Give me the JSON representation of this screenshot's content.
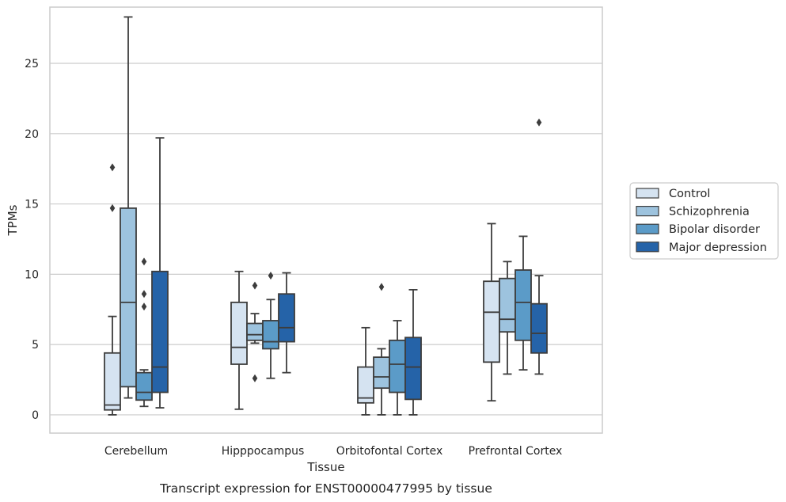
{
  "chart_data": {
    "type": "box",
    "xlabel": "Tissue",
    "ylabel": "TPMs",
    "caption": "Transcript expression for ENST00000477995 by tissue",
    "ylim": [
      -1.3,
      29
    ],
    "yticks": [
      0,
      5,
      10,
      15,
      20,
      25
    ],
    "grid": "horizontal",
    "legend_position": "right",
    "categories": [
      "Cerebellum",
      "Hipppocampus",
      "Orbitofontal Cortex",
      "Prefrontal Cortex"
    ],
    "series": [
      {
        "name": "Control",
        "color": "#d5e3f1",
        "boxes": [
          {
            "whisker_low": 0.0,
            "q1": 0.35,
            "median": 0.7,
            "q3": 4.4,
            "whisker_high": 7.0,
            "outliers": [
              17.6,
              14.7
            ]
          },
          {
            "whisker_low": 0.4,
            "q1": 3.6,
            "median": 4.8,
            "q3": 8.0,
            "whisker_high": 10.2,
            "outliers": []
          },
          {
            "whisker_low": 0.0,
            "q1": 0.85,
            "median": 1.2,
            "q3": 3.4,
            "whisker_high": 6.2,
            "outliers": []
          },
          {
            "whisker_low": 1.0,
            "q1": 3.75,
            "median": 7.3,
            "q3": 9.5,
            "whisker_high": 13.6,
            "outliers": []
          }
        ]
      },
      {
        "name": "Schizophrenia",
        "color": "#9dc3de",
        "boxes": [
          {
            "whisker_low": 1.2,
            "q1": 2.0,
            "median": 8.0,
            "q3": 14.7,
            "whisker_high": 28.3,
            "outliers": []
          },
          {
            "whisker_low": 5.1,
            "q1": 5.3,
            "median": 5.7,
            "q3": 6.5,
            "whisker_high": 7.2,
            "outliers": [
              9.2,
              2.6
            ]
          },
          {
            "whisker_low": 0.0,
            "q1": 1.9,
            "median": 2.7,
            "q3": 4.1,
            "whisker_high": 4.7,
            "outliers": [
              9.1
            ]
          },
          {
            "whisker_low": 2.9,
            "q1": 5.9,
            "median": 6.8,
            "q3": 9.7,
            "whisker_high": 10.9,
            "outliers": []
          }
        ]
      },
      {
        "name": "Bipolar disorder",
        "color": "#5b9bc8",
        "boxes": [
          {
            "whisker_low": 0.6,
            "q1": 1.05,
            "median": 1.6,
            "q3": 3.0,
            "whisker_high": 3.2,
            "outliers": [
              10.9,
              8.6,
              7.7
            ]
          },
          {
            "whisker_low": 2.6,
            "q1": 4.7,
            "median": 5.2,
            "q3": 6.7,
            "whisker_high": 8.2,
            "outliers": [
              9.9
            ]
          },
          {
            "whisker_low": 0.0,
            "q1": 1.6,
            "median": 3.6,
            "q3": 5.3,
            "whisker_high": 6.7,
            "outliers": []
          },
          {
            "whisker_low": 3.2,
            "q1": 5.3,
            "median": 8.0,
            "q3": 10.3,
            "whisker_high": 12.7,
            "outliers": []
          }
        ]
      },
      {
        "name": "Major depression",
        "color": "#2563a8",
        "boxes": [
          {
            "whisker_low": 0.5,
            "q1": 1.6,
            "median": 3.4,
            "q3": 10.2,
            "whisker_high": 19.7,
            "outliers": []
          },
          {
            "whisker_low": 3.0,
            "q1": 5.2,
            "median": 6.2,
            "q3": 8.6,
            "whisker_high": 10.1,
            "outliers": []
          },
          {
            "whisker_low": 0.0,
            "q1": 1.1,
            "median": 3.4,
            "q3": 5.5,
            "whisker_high": 8.9,
            "outliers": []
          },
          {
            "whisker_low": 2.9,
            "q1": 4.4,
            "median": 5.8,
            "q3": 7.9,
            "whisker_high": 9.9,
            "outliers": [
              20.8
            ]
          }
        ]
      }
    ]
  }
}
